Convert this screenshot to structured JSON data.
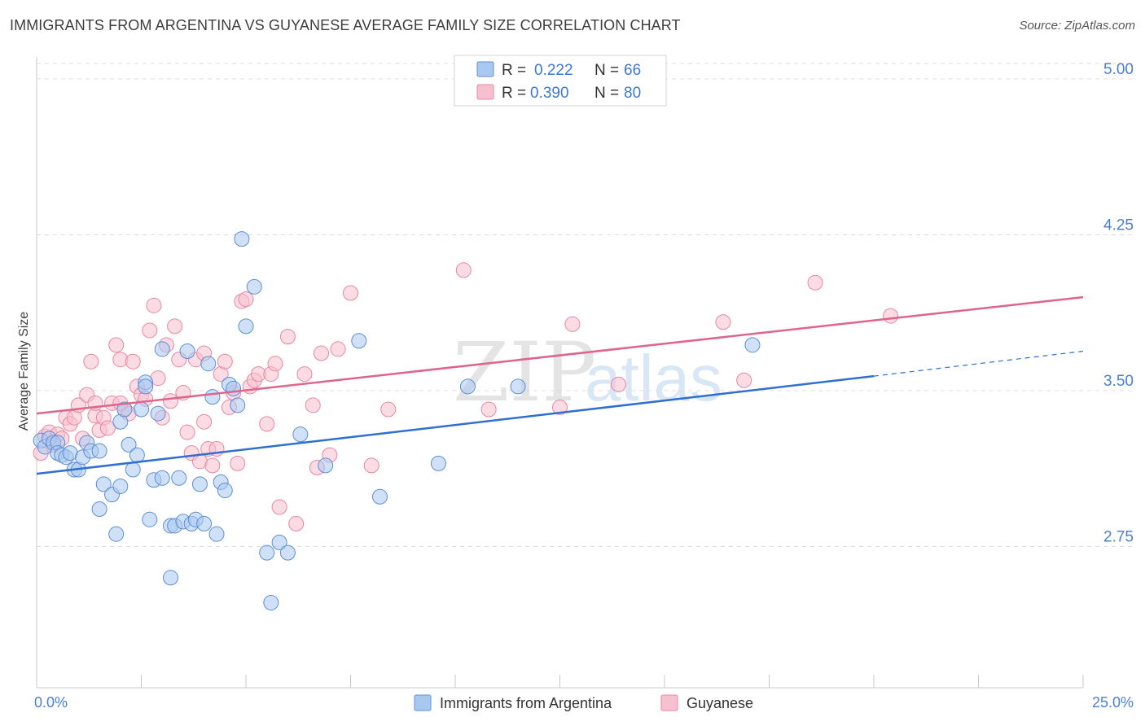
{
  "header": {
    "title": "IMMIGRANTS FROM ARGENTINA VS GUYANESE AVERAGE FAMILY SIZE CORRELATION CHART",
    "source": "Source: ZipAtlas.com"
  },
  "watermark": {
    "part1": "ZIP",
    "part2": "atlas"
  },
  "legend_top": {
    "rows": [
      {
        "r_label": "R =",
        "r_value": "0.222",
        "n_label": "N =",
        "n_value": "66"
      },
      {
        "r_label": "R =",
        "r_value": "0.390",
        "n_label": "N =",
        "n_value": "80"
      }
    ]
  },
  "legend_bottom": {
    "items": [
      "Immigrants from Argentina",
      "Guyanese"
    ]
  },
  "colors": {
    "blue_fill": "#a9c8f0",
    "blue_stroke": "#5b8fd6",
    "blue_line": "#2f6fcf",
    "pink_fill": "#f7c0d0",
    "pink_stroke": "#e9879f",
    "pink_line": "#e0638b",
    "tick_text": "#4a7fd4",
    "grid": "#dcdcdc"
  },
  "chart_data": {
    "type": "scatter",
    "title": "IMMIGRANTS FROM ARGENTINA VS GUYANESE AVERAGE FAMILY SIZE CORRELATION CHART",
    "xlabel": "",
    "ylabel": "Average Family Size",
    "xlim": [
      0,
      25
    ],
    "ylim": [
      2.2,
      5.12
    ],
    "x_tick_labels": [
      "0.0%",
      "25.0%"
    ],
    "y_ticks": [
      2.75,
      3.5,
      4.25,
      5.0
    ],
    "y_tick_labels": [
      "2.75",
      "3.50",
      "4.25",
      "5.00"
    ],
    "grid": "horizontal dashed",
    "legend_position": "top-center",
    "series": [
      {
        "name": "Immigrants from Argentina",
        "color": "blue",
        "trend": {
          "x0": 0,
          "y0": 3.1,
          "x1": 20,
          "y1": 3.57,
          "dashed_to_x": 25,
          "dashed_to_y": 3.69
        },
        "points": [
          [
            0.1,
            3.26
          ],
          [
            0.2,
            3.23
          ],
          [
            0.3,
            3.27
          ],
          [
            0.4,
            3.25
          ],
          [
            0.5,
            3.25
          ],
          [
            0.5,
            3.2
          ],
          [
            0.6,
            3.19
          ],
          [
            0.7,
            3.18
          ],
          [
            0.8,
            3.2
          ],
          [
            0.9,
            3.12
          ],
          [
            1.0,
            3.12
          ],
          [
            1.1,
            3.18
          ],
          [
            1.2,
            3.25
          ],
          [
            1.3,
            3.21
          ],
          [
            1.5,
            3.21
          ],
          [
            1.6,
            3.05
          ],
          [
            1.8,
            3.0
          ],
          [
            2.0,
            3.04
          ],
          [
            1.5,
            2.93
          ],
          [
            1.9,
            2.81
          ],
          [
            2.0,
            3.35
          ],
          [
            2.1,
            3.41
          ],
          [
            2.2,
            3.24
          ],
          [
            2.3,
            3.12
          ],
          [
            2.4,
            3.19
          ],
          [
            2.5,
            3.41
          ],
          [
            2.6,
            3.54
          ],
          [
            2.7,
            2.88
          ],
          [
            2.8,
            3.07
          ],
          [
            2.9,
            3.39
          ],
          [
            3.0,
            3.08
          ],
          [
            3.2,
            2.85
          ],
          [
            3.3,
            2.85
          ],
          [
            3.4,
            3.08
          ],
          [
            3.5,
            2.87
          ],
          [
            3.6,
            3.69
          ],
          [
            3.7,
            2.86
          ],
          [
            3.8,
            2.88
          ],
          [
            3.9,
            3.05
          ],
          [
            4.0,
            2.86
          ],
          [
            4.1,
            3.63
          ],
          [
            4.2,
            3.47
          ],
          [
            4.3,
            2.81
          ],
          [
            4.4,
            3.06
          ],
          [
            4.5,
            3.02
          ],
          [
            4.6,
            3.53
          ],
          [
            4.7,
            3.51
          ],
          [
            4.8,
            3.43
          ],
          [
            4.9,
            4.23
          ],
          [
            5.0,
            3.81
          ],
          [
            5.2,
            4.0
          ],
          [
            5.5,
            2.72
          ],
          [
            5.6,
            2.48
          ],
          [
            5.8,
            2.77
          ],
          [
            6.3,
            3.29
          ],
          [
            6.9,
            3.14
          ],
          [
            7.7,
            3.74
          ],
          [
            8.2,
            2.99
          ],
          [
            9.6,
            3.15
          ],
          [
            10.3,
            3.52
          ],
          [
            11.5,
            3.52
          ],
          [
            17.1,
            3.72
          ],
          [
            3.2,
            2.6
          ],
          [
            6.0,
            2.72
          ],
          [
            2.6,
            3.52
          ],
          [
            3.0,
            3.7
          ]
        ]
      },
      {
        "name": "Guyanese",
        "color": "pink",
        "trend": {
          "x0": 0,
          "y0": 3.39,
          "x1": 25,
          "y1": 3.95
        },
        "points": [
          [
            0.1,
            3.2
          ],
          [
            0.2,
            3.28
          ],
          [
            0.3,
            3.3
          ],
          [
            0.4,
            3.24
          ],
          [
            0.5,
            3.29
          ],
          [
            0.6,
            3.27
          ],
          [
            0.7,
            3.37
          ],
          [
            0.8,
            3.34
          ],
          [
            0.9,
            3.37
          ],
          [
            1.0,
            3.43
          ],
          [
            1.1,
            3.27
          ],
          [
            1.2,
            3.48
          ],
          [
            1.3,
            3.64
          ],
          [
            1.4,
            3.38
          ],
          [
            1.5,
            3.31
          ],
          [
            1.6,
            3.37
          ],
          [
            1.7,
            3.32
          ],
          [
            1.8,
            3.44
          ],
          [
            1.9,
            3.72
          ],
          [
            2.0,
            3.65
          ],
          [
            2.1,
            3.41
          ],
          [
            2.2,
            3.39
          ],
          [
            2.3,
            3.64
          ],
          [
            2.4,
            3.52
          ],
          [
            2.5,
            3.48
          ],
          [
            2.6,
            3.46
          ],
          [
            2.7,
            3.79
          ],
          [
            2.8,
            3.91
          ],
          [
            2.9,
            3.56
          ],
          [
            3.0,
            3.37
          ],
          [
            3.1,
            3.72
          ],
          [
            3.2,
            3.45
          ],
          [
            3.3,
            3.81
          ],
          [
            3.4,
            3.65
          ],
          [
            3.5,
            3.49
          ],
          [
            3.6,
            3.3
          ],
          [
            3.7,
            3.2
          ],
          [
            3.8,
            3.65
          ],
          [
            3.9,
            3.16
          ],
          [
            4.0,
            3.68
          ],
          [
            4.1,
            3.22
          ],
          [
            4.2,
            3.14
          ],
          [
            4.3,
            3.22
          ],
          [
            4.4,
            3.58
          ],
          [
            4.5,
            3.64
          ],
          [
            4.6,
            3.42
          ],
          [
            4.7,
            3.49
          ],
          [
            4.8,
            3.15
          ],
          [
            4.9,
            3.93
          ],
          [
            5.0,
            3.94
          ],
          [
            5.1,
            3.52
          ],
          [
            5.2,
            3.55
          ],
          [
            5.3,
            3.58
          ],
          [
            5.5,
            3.34
          ],
          [
            5.6,
            3.58
          ],
          [
            5.7,
            3.63
          ],
          [
            5.8,
            2.94
          ],
          [
            6.0,
            3.76
          ],
          [
            6.2,
            2.86
          ],
          [
            6.4,
            3.58
          ],
          [
            6.6,
            3.43
          ],
          [
            6.7,
            3.13
          ],
          [
            6.8,
            3.68
          ],
          [
            7.0,
            3.19
          ],
          [
            7.2,
            3.7
          ],
          [
            7.5,
            3.97
          ],
          [
            8.0,
            3.14
          ],
          [
            8.4,
            3.41
          ],
          [
            10.2,
            4.08
          ],
          [
            10.8,
            3.41
          ],
          [
            12.5,
            3.42
          ],
          [
            12.8,
            3.82
          ],
          [
            13.9,
            3.53
          ],
          [
            16.4,
            3.83
          ],
          [
            16.9,
            3.55
          ],
          [
            18.6,
            4.02
          ],
          [
            20.4,
            3.86
          ],
          [
            2.0,
            3.44
          ],
          [
            4.0,
            3.35
          ],
          [
            1.4,
            3.44
          ]
        ]
      }
    ]
  }
}
